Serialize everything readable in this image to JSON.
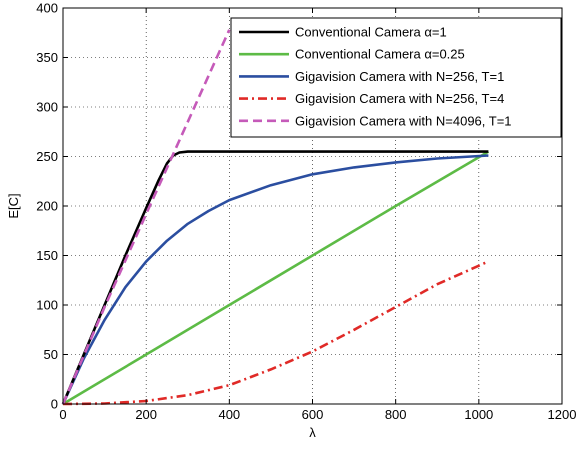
{
  "chart_data": {
    "type": "line",
    "title": "",
    "xlabel": "λ",
    "ylabel": "E[C]",
    "xlim": [
      0,
      1200
    ],
    "ylim": [
      0,
      400
    ],
    "xticks": [
      0,
      200,
      400,
      600,
      800,
      1000,
      1200
    ],
    "yticks": [
      0,
      50,
      100,
      150,
      200,
      250,
      300,
      350,
      400
    ],
    "grid": true,
    "legend_position": "top-right",
    "series": [
      {
        "name": "Conventional Camera α=1",
        "color": "#000000",
        "dash": "solid",
        "x": [
          0,
          50,
          100,
          150,
          200,
          230,
          250,
          265,
          280,
          300,
          400,
          600,
          800,
          1023
        ],
        "y": [
          0,
          50,
          100,
          150,
          198,
          226,
          243,
          251,
          254,
          255,
          255,
          255,
          255,
          255
        ]
      },
      {
        "name": "Conventional Camera α=0.25",
        "color": "#5dbb46",
        "dash": "solid",
        "x": [
          0,
          200,
          400,
          600,
          800,
          1023
        ],
        "y": [
          0,
          50,
          100,
          150,
          200,
          255
        ]
      },
      {
        "name": "Gigavision Camera with N=256, T=1",
        "color": "#2b4ea0",
        "dash": "solid",
        "x": [
          0,
          50,
          100,
          150,
          200,
          250,
          300,
          350,
          400,
          500,
          600,
          700,
          800,
          900,
          1023
        ],
        "y": [
          0,
          46,
          85,
          118,
          144,
          165,
          182,
          195,
          206,
          221,
          232,
          239,
          244,
          248,
          251
        ]
      },
      {
        "name": "Gigavision Camera with N=256, T=4",
        "color": "#e02a27",
        "dash": "dashdot",
        "x": [
          0,
          100,
          200,
          300,
          400,
          500,
          600,
          700,
          800,
          900,
          1023
        ],
        "y": [
          0,
          0.5,
          3,
          9,
          19,
          35,
          53,
          75,
          98,
          121,
          144
        ]
      },
      {
        "name": "Gigavision Camera with N=4096, T=1",
        "color": "#c55ab9",
        "dash": "dash",
        "x": [
          0,
          100,
          200,
          300,
          400
        ],
        "y": [
          0,
          98,
          192,
          285,
          378
        ]
      }
    ]
  }
}
